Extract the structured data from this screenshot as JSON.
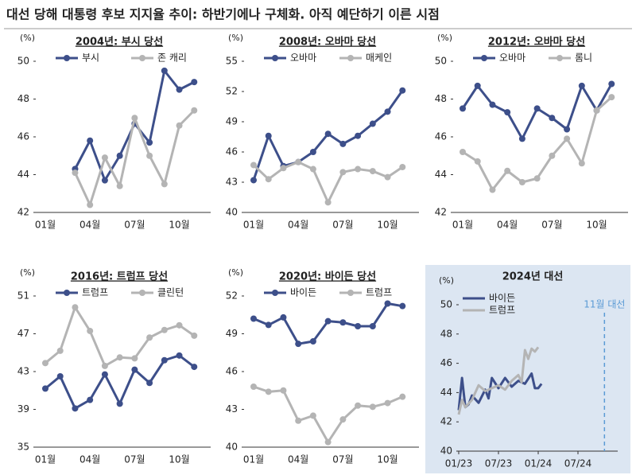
{
  "title": "대선 당해 대통령 후보 지지율 추이: 하반기에나 구체화. 아직 예단하기 이른 시점",
  "chart_data": [
    {
      "type": "line",
      "title": "2004년: 부시 당선",
      "y_unit": "(%)",
      "markers": true,
      "categories": [
        "01월",
        null,
        null,
        "04월",
        null,
        null,
        "07월",
        null,
        null,
        "10월",
        null,
        null
      ],
      "series": [
        {
          "name": "부시",
          "color": "#3d4f8a",
          "values": [
            null,
            null,
            44.3,
            45.8,
            43.7,
            45.0,
            46.7,
            45.7,
            49.5,
            48.5,
            48.9,
            null
          ]
        },
        {
          "name": "존 캐리",
          "color": "#b4b4b4",
          "values": [
            null,
            null,
            44.1,
            42.4,
            44.9,
            43.4,
            47.0,
            45.0,
            43.5,
            46.6,
            47.4,
            null
          ]
        }
      ],
      "ylim": [
        42,
        50
      ],
      "yticks": [
        42,
        44,
        46,
        48,
        50
      ]
    },
    {
      "type": "line",
      "title": "2008년: 오바마 당선",
      "y_unit": "(%)",
      "markers": true,
      "categories": [
        "01월",
        null,
        null,
        "04월",
        null,
        null,
        "07월",
        null,
        null,
        "10월",
        null,
        null
      ],
      "series": [
        {
          "name": "오바마",
          "color": "#3d4f8a",
          "values": [
            43.2,
            47.6,
            44.6,
            45.0,
            46.0,
            47.8,
            46.8,
            47.6,
            48.8,
            50.0,
            52.1,
            null
          ]
        },
        {
          "name": "매케인",
          "color": "#b4b4b4",
          "values": [
            44.7,
            43.3,
            44.4,
            45.0,
            44.3,
            41.0,
            44.0,
            44.3,
            44.1,
            43.5,
            44.5,
            null
          ]
        }
      ],
      "ylim": [
        40,
        55
      ],
      "yticks": [
        40,
        43,
        46,
        49,
        52,
        55
      ]
    },
    {
      "type": "line",
      "title": "2012년: 오바마 당선",
      "y_unit": "(%)",
      "markers": true,
      "categories": [
        "01월",
        null,
        null,
        "04월",
        null,
        null,
        "07월",
        null,
        null,
        "10월",
        null,
        null
      ],
      "series": [
        {
          "name": "오바마",
          "color": "#3d4f8a",
          "values": [
            47.5,
            48.7,
            47.7,
            47.3,
            45.9,
            47.5,
            47.0,
            46.4,
            48.7,
            47.4,
            48.8,
            null
          ]
        },
        {
          "name": "롬니",
          "color": "#b4b4b4",
          "values": [
            45.2,
            44.7,
            43.2,
            44.2,
            43.6,
            43.8,
            45.0,
            45.9,
            44.6,
            47.4,
            48.1,
            null
          ]
        }
      ],
      "ylim": [
        42,
        50
      ],
      "yticks": [
        42,
        44,
        46,
        48,
        50
      ]
    },
    {
      "type": "line",
      "title": "2016년: 트럼프 당선",
      "y_unit": "(%)",
      "markers": true,
      "categories": [
        "01월",
        null,
        null,
        "04월",
        null,
        null,
        "07월",
        null,
        null,
        "10월",
        null,
        null
      ],
      "series": [
        {
          "name": "트럼프",
          "color": "#3d4f8a",
          "values": [
            41.2,
            42.5,
            39.1,
            40.0,
            42.7,
            39.6,
            43.2,
            41.8,
            44.2,
            44.7,
            43.5,
            null
          ]
        },
        {
          "name": "클린턴",
          "color": "#b4b4b4",
          "values": [
            43.9,
            45.2,
            49.8,
            47.3,
            43.6,
            44.5,
            44.4,
            46.6,
            47.4,
            47.9,
            46.8,
            null
          ]
        }
      ],
      "ylim": [
        35,
        51
      ],
      "yticks": [
        35,
        39,
        43,
        47,
        51
      ]
    },
    {
      "type": "line",
      "title": "2020년: 바이든 당선",
      "y_unit": "(%)",
      "markers": true,
      "categories": [
        "01월",
        null,
        null,
        "04월",
        null,
        null,
        "07월",
        null,
        null,
        "10월",
        null,
        null
      ],
      "series": [
        {
          "name": "바이든",
          "color": "#3d4f8a",
          "values": [
            50.2,
            49.7,
            50.3,
            48.2,
            48.4,
            50.0,
            49.9,
            49.6,
            49.6,
            51.4,
            51.2,
            null
          ]
        },
        {
          "name": "트럼프",
          "color": "#b4b4b4",
          "values": [
            44.8,
            44.4,
            44.5,
            42.1,
            42.5,
            40.4,
            42.2,
            43.3,
            43.2,
            43.5,
            44.0,
            null
          ]
        }
      ],
      "ylim": [
        40,
        52
      ],
      "yticks": [
        40,
        43,
        46,
        49,
        52
      ]
    },
    {
      "type": "line",
      "title": "2024년 대선",
      "y_unit": "(%)",
      "markers": false,
      "series": [
        {
          "name": "바이든",
          "color": "#3d4f8a",
          "x": [
            0,
            0.5,
            1,
            1.5,
            2,
            3,
            4,
            4.5,
            5,
            6,
            7,
            8,
            9,
            10,
            11,
            11.5,
            12,
            12.5
          ],
          "values": [
            42.8,
            45.0,
            43.0,
            43.2,
            43.8,
            43.3,
            44.2,
            43.6,
            45.0,
            44.3,
            45.0,
            44.4,
            44.8,
            44.6,
            45.3,
            44.3,
            44.3,
            44.6
          ]
        },
        {
          "name": "트럼프",
          "color": "#b4b4b4",
          "x": [
            0,
            0.5,
            1,
            2,
            3,
            4,
            5,
            6,
            7,
            8,
            9,
            9.5,
            10,
            10.5,
            11,
            11.5,
            12
          ],
          "values": [
            42.5,
            43.5,
            43.0,
            43.5,
            44.5,
            44.1,
            44.3,
            44.5,
            44.2,
            44.8,
            45.2,
            44.7,
            46.9,
            46.3,
            47.0,
            46.8,
            47.1
          ]
        }
      ],
      "xlim": [
        0,
        24
      ],
      "xticks": [
        {
          "value": 0,
          "label": "01/23"
        },
        {
          "value": 6,
          "label": "07/23"
        },
        {
          "value": 12,
          "label": "01/24"
        },
        {
          "value": 18,
          "label": "07/24"
        }
      ],
      "ylim": [
        40,
        50
      ],
      "yticks": [
        40,
        42,
        44,
        46,
        48,
        50
      ],
      "vline": {
        "value": 22,
        "label": "11월 대선",
        "color": "#5b9bd5"
      }
    }
  ]
}
